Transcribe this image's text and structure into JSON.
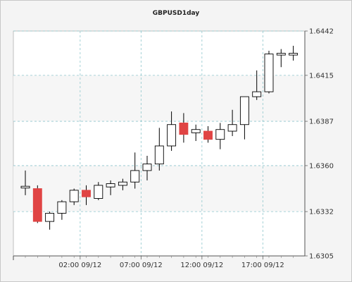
{
  "chart_data": {
    "type": "candlestick",
    "title": "GBPUSD1day",
    "ylim": [
      1.6305,
      1.6442
    ],
    "yticks": [
      "1.6305",
      "1.6332",
      "1.6360",
      "1.6387",
      "1.6415",
      "1.6442"
    ],
    "xlabels": [
      {
        "label": "02:00 09/12",
        "index": 4.5
      },
      {
        "label": "07:00 09/12",
        "index": 9.5
      },
      {
        "label": "12:00 09/12",
        "index": 14.5
      },
      {
        "label": "17:00 09/12",
        "index": 19.5
      }
    ],
    "grid": true,
    "colors": {
      "up_body": "#ffffff",
      "down_body": "#e04444",
      "outline": "#000000",
      "grid": "#8ec6cc",
      "plot_bg": "#ffffff",
      "panel_bg": "#f4f4f4",
      "band": "#f6f6f6"
    },
    "candles": [
      {
        "open": 1.6347,
        "high": 1.6357,
        "low": 1.6342,
        "close": 1.6347
      },
      {
        "open": 1.6346,
        "high": 1.6348,
        "low": 1.6325,
        "close": 1.6326
      },
      {
        "open": 1.6326,
        "high": 1.6332,
        "low": 1.6321,
        "close": 1.6331
      },
      {
        "open": 1.6331,
        "high": 1.6339,
        "low": 1.6327,
        "close": 1.6338
      },
      {
        "open": 1.6338,
        "high": 1.6346,
        "low": 1.6336,
        "close": 1.6345
      },
      {
        "open": 1.6345,
        "high": 1.6348,
        "low": 1.6336,
        "close": 1.6341
      },
      {
        "open": 1.634,
        "high": 1.635,
        "low": 1.6339,
        "close": 1.6348
      },
      {
        "open": 1.6347,
        "high": 1.6351,
        "low": 1.6342,
        "close": 1.6349
      },
      {
        "open": 1.6348,
        "high": 1.6352,
        "low": 1.6345,
        "close": 1.635
      },
      {
        "open": 1.635,
        "high": 1.6368,
        "low": 1.6346,
        "close": 1.6357
      },
      {
        "open": 1.6357,
        "high": 1.6366,
        "low": 1.6351,
        "close": 1.6361
      },
      {
        "open": 1.6361,
        "high": 1.6383,
        "low": 1.6357,
        "close": 1.6372
      },
      {
        "open": 1.6372,
        "high": 1.6393,
        "low": 1.6369,
        "close": 1.6385
      },
      {
        "open": 1.6386,
        "high": 1.6392,
        "low": 1.6374,
        "close": 1.6379
      },
      {
        "open": 1.638,
        "high": 1.6385,
        "low": 1.6375,
        "close": 1.6382
      },
      {
        "open": 1.6381,
        "high": 1.6384,
        "low": 1.6374,
        "close": 1.6376
      },
      {
        "open": 1.6376,
        "high": 1.6386,
        "low": 1.637,
        "close": 1.6382
      },
      {
        "open": 1.6381,
        "high": 1.6394,
        "low": 1.6378,
        "close": 1.6385
      },
      {
        "open": 1.6385,
        "high": 1.6402,
        "low": 1.6376,
        "close": 1.6402
      },
      {
        "open": 1.6402,
        "high": 1.6418,
        "low": 1.64,
        "close": 1.6405
      },
      {
        "open": 1.6405,
        "high": 1.643,
        "low": 1.6404,
        "close": 1.6428
      },
      {
        "open": 1.6428,
        "high": 1.6431,
        "low": 1.642,
        "close": 1.6428
      },
      {
        "open": 1.6428,
        "high": 1.6433,
        "low": 1.6424,
        "close": 1.6428
      }
    ]
  }
}
